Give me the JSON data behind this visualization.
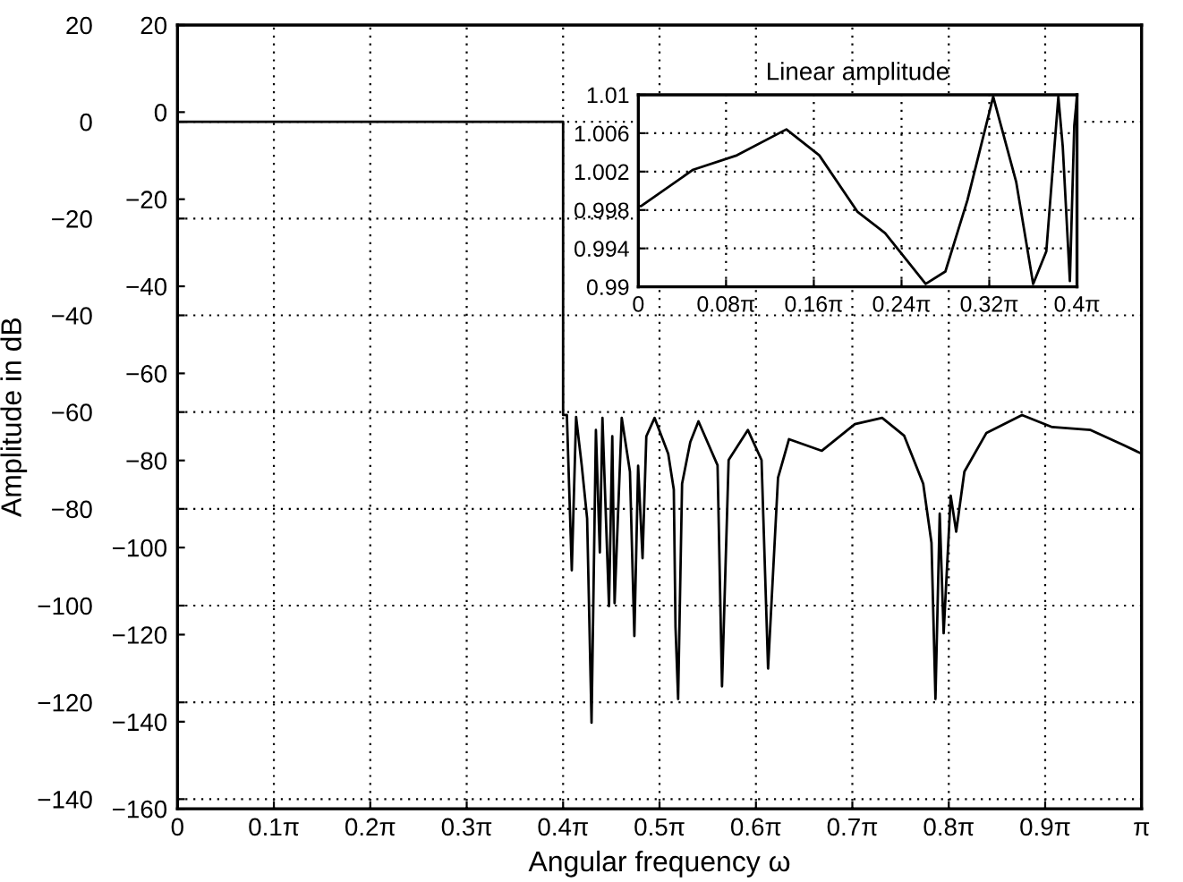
{
  "chart_data": [
    {
      "type": "line",
      "xlabel": "Angular frequency ω",
      "ylabel": "Amplitude in dB",
      "color": "#000000",
      "line_style": "solid",
      "grid": true,
      "x": [
        0,
        1.2566,
        1.2566,
        1.2689,
        1.2849,
        1.299,
        1.3173,
        1.3349,
        1.3493,
        1.3635,
        1.3763,
        1.3848,
        1.4062,
        1.4169,
        1.4244,
        1.4477,
        1.4744,
        1.4888,
        1.5011,
        1.5155,
        1.5278,
        1.5548,
        1.5991,
        1.6173,
        1.6229,
        1.6314,
        1.6443,
        1.671,
        1.6977,
        1.7599,
        1.7744,
        1.796,
        1.8586,
        1.9032,
        1.9245,
        1.9569,
        1.9927,
        2.0998,
        2.2073,
        2.2962,
        2.3681,
        2.43,
        2.457,
        2.4699,
        2.4838,
        2.4966,
        2.5196,
        2.5375,
        2.5642,
        2.6361,
        2.752,
        2.8504,
        2.9754,
        3.0825,
        3.1416
      ],
      "values": [
        0,
        0,
        -60.6,
        -60.6,
        -92.7,
        -61,
        -71,
        -82,
        -124.2,
        -63.7,
        -89,
        -61.2,
        -100.1,
        -65,
        -99.5,
        -61.2,
        -72.3,
        -106.3,
        -71.1,
        -90.2,
        -65,
        -61.2,
        -68.6,
        -76,
        -104.4,
        -119.3,
        -74.8,
        -66.2,
        -61.9,
        -71,
        -116.7,
        -69.9,
        -63.7,
        -69.9,
        -113,
        -73.6,
        -65.6,
        -68,
        -62.5,
        -61.2,
        -64.9,
        -74.8,
        -87,
        -119.3,
        -81,
        -105.7,
        -77.3,
        -84.7,
        -72.3,
        -64.3,
        -60.6,
        -63.1,
        -63.7,
        -66.8,
        -68.6
      ],
      "xlim": [
        0,
        3.1416
      ],
      "xticks": [
        0,
        {
          "value": 0.3142,
          "label": "0.1π"
        },
        {
          "value": 0.6283,
          "label": "0.2π"
        },
        {
          "value": 0.9425,
          "label": "0.3π"
        },
        {
          "value": 1.2566,
          "label": "0.4π"
        },
        {
          "value": 1.5708,
          "label": "0.5π"
        },
        {
          "value": 1.885,
          "label": "0.6π"
        },
        {
          "value": 2.1991,
          "label": "0.7π"
        },
        {
          "value": 2.5133,
          "label": "0.8π"
        },
        {
          "value": 2.8274,
          "label": "0.9π"
        },
        {
          "value": 3.1416,
          "label": "π"
        }
      ],
      "ylim": [
        -142,
        20
      ],
      "yticks": [
        20,
        0,
        {
          "value": -20,
          "label": "−20"
        },
        {
          "value": -40,
          "label": "−40"
        },
        {
          "value": -60,
          "label": "−60"
        },
        {
          "value": -80,
          "label": "−80"
        },
        {
          "value": -100,
          "label": "−100"
        },
        {
          "value": -120,
          "label": "−120"
        },
        {
          "value": -140,
          "label": "−140"
        }
      ],
      "y2lim": [
        -160,
        20
      ],
      "y2ticks": [
        20,
        0,
        {
          "value": -20,
          "label": "−20"
        },
        {
          "value": -40,
          "label": "−40"
        },
        {
          "value": -60,
          "label": "−60"
        },
        {
          "value": -80,
          "label": "−80"
        },
        {
          "value": -100,
          "label": "−100"
        },
        {
          "value": -120,
          "label": "−120"
        },
        {
          "value": -140,
          "label": "−140"
        },
        {
          "value": -160,
          "label": "−160"
        }
      ]
    },
    {
      "type": "line",
      "title": "Linear amplitude",
      "color": "#000000",
      "line_style": "solid",
      "grid": true,
      "x": [
        0,
        0.0079,
        0.1571,
        0.2827,
        0.4241,
        0.5184,
        0.6283,
        0.7069,
        0.8231,
        0.8796,
        0.9425,
        1.0166,
        1.0826,
        1.131,
        1.1687,
        1.2032,
        1.2158,
        1.2362,
        1.2488,
        1.2566
      ],
      "values": [
        0.9984,
        0.9984,
        1.0022,
        1.0037,
        1.0064,
        1.0037,
        0.9978,
        0.9956,
        0.9903,
        0.9916,
        0.999,
        1.0098,
        1.0009,
        0.9903,
        0.9937,
        1.0098,
        1.0046,
        0.9906,
        1.0068,
        1.0098
      ],
      "xlim": [
        0,
        1.2566
      ],
      "xticks": [
        0,
        {
          "value": 0.2513,
          "label": "0.08π"
        },
        {
          "value": 0.5027,
          "label": "0.16π"
        },
        {
          "value": 0.754,
          "label": "0.24π"
        },
        {
          "value": 1.0053,
          "label": "0.32π"
        },
        {
          "value": 1.2566,
          "label": "0.4π"
        }
      ],
      "ylim": [
        0.99,
        1.01
      ],
      "yticks": [
        0.99,
        0.994,
        0.998,
        1.002,
        1.006,
        1.01
      ]
    }
  ]
}
